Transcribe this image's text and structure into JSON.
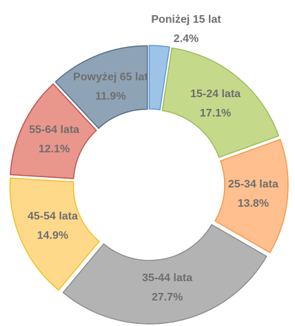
{
  "chart_data": {
    "type": "donut",
    "categories": [
      "Poniżej 15 lat",
      "15-24 lata",
      "25-34 lata",
      "35-44 lata",
      "45-54 lata",
      "55-64 lata",
      "Powyżej 65 lat"
    ],
    "values": [
      2.4,
      17.1,
      13.8,
      27.7,
      14.9,
      12.1,
      11.9
    ],
    "value_labels": [
      "2.4%",
      "17.1%",
      "13.8%",
      "27.7%",
      "14.9%",
      "12.1%",
      "11.9%"
    ],
    "colors": [
      "#9dc3e6",
      "#c5d98a",
      "#ffbf8f",
      "#b3b3b3",
      "#ffd98a",
      "#e9968c",
      "#8fa3b6"
    ],
    "edge_colors": [
      "#5b9bd5",
      "#9bbb59",
      "#f79646",
      "#8c8c8c",
      "#f0c020",
      "#c0504d",
      "#4f6b85"
    ]
  }
}
